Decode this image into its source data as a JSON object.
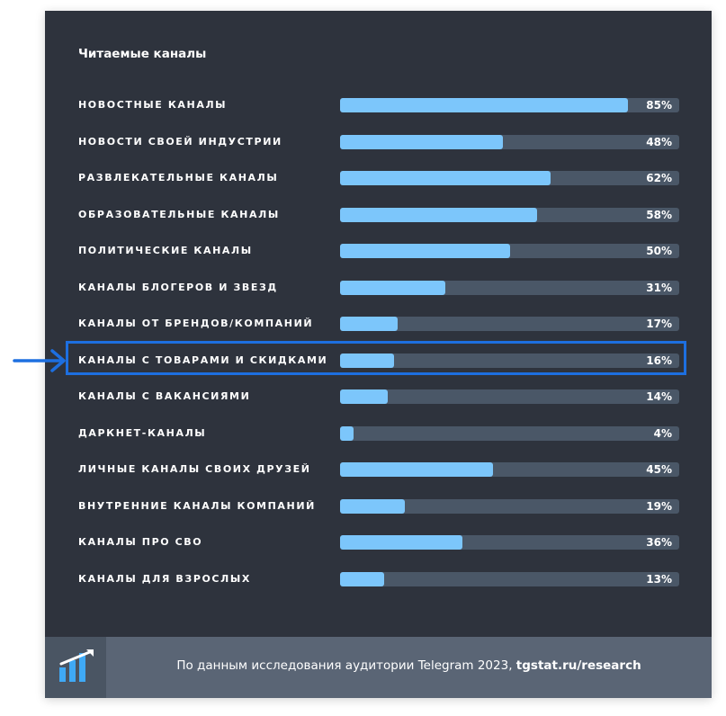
{
  "chart_data": {
    "type": "bar",
    "title": "Читаемые каналы",
    "categories": [
      "НОВОСТНЫЕ КАНАЛЫ",
      "НОВОСТИ СВОЕЙ ИНДУСТРИИ",
      "РАЗВЛЕКАТЕЛЬНЫЕ КАНАЛЫ",
      "ОБРАЗОВАТЕЛЬНЫЕ КАНАЛЫ",
      "ПОЛИТИЧЕСКИЕ КАНАЛЫ",
      "КАНАЛЫ БЛОГЕРОВ И ЗВЕЗД",
      "КАНАЛЫ ОТ БРЕНДОВ/КОМПАНИЙ",
      "КАНАЛЫ С ТОВАРАМИ И СКИДКАМИ",
      "КАНАЛЫ С ВАКАНСИЯМИ",
      "ДАРКНЕТ-КАНАЛЫ",
      "ЛИЧНЫЕ КАНАЛЫ СВОИХ ДРУЗЕЙ",
      "ВНУТРЕННИЕ КАНАЛЫ КОМПАНИЙ",
      "КАНАЛЫ ПРО СВО",
      "КАНАЛЫ ДЛЯ ВЗРОСЛЫХ"
    ],
    "values": [
      85,
      48,
      62,
      58,
      50,
      31,
      17,
      16,
      14,
      4,
      45,
      19,
      36,
      13
    ],
    "value_labels": [
      "85%",
      "48%",
      "62%",
      "58%",
      "50%",
      "31%",
      "17%",
      "16%",
      "14%",
      "4%",
      "45%",
      "19%",
      "36%",
      "13%"
    ],
    "xlim": [
      0,
      100
    ],
    "orientation": "horizontal",
    "highlighted_category": "КАНАЛЫ С ТОВАРАМИ И СКИДКАМИ"
  },
  "footer": {
    "text": "По данным исследования аудитории Telegram 2023, ",
    "link": "tgstat.ru/research"
  },
  "colors": {
    "background": "#2e333d",
    "track": "#4a5767",
    "bar": "#7cc6fb",
    "footer": "#5a6575",
    "logo_box": "#4a5563",
    "highlight": "#1d6fe0"
  },
  "icons": {
    "logo": "tgstat-logo-icon",
    "pointer": "arrow-right-icon"
  }
}
